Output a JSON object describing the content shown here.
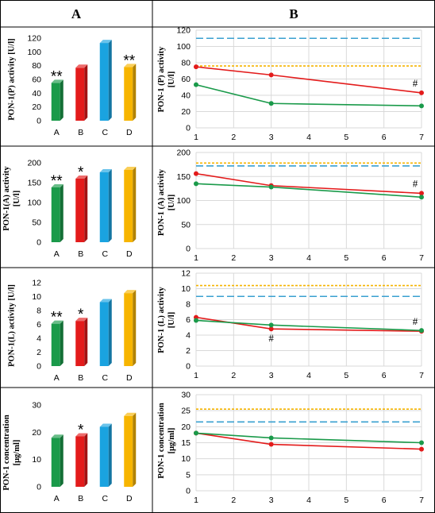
{
  "headers": {
    "a": "A",
    "b": "B"
  },
  "colors": {
    "A": "#1a9a4a",
    "B": "#e31b1b",
    "C": "#1aa3e0",
    "D": "#f7b500",
    "ref_blue": "#3aa0d0",
    "ref_orange": "#f5b400",
    "grid": "#d9d9d9"
  },
  "chart_data": [
    {
      "type": "bar",
      "panel": "A1",
      "categories": [
        "A",
        "B",
        "C",
        "D"
      ],
      "values": [
        55,
        77,
        113,
        78
      ],
      "ylim": [
        0,
        120
      ],
      "yticks": [
        0,
        20,
        40,
        60,
        80,
        100,
        120
      ],
      "ylabel": [
        "PON-1(P) activity [U/l]"
      ],
      "annotations": [
        "**",
        "",
        "",
        "**"
      ]
    },
    {
      "type": "line",
      "panel": "B1",
      "x": [
        1,
        3,
        7
      ],
      "xlim": [
        1,
        7
      ],
      "xticks": [
        1,
        2,
        3,
        4,
        5,
        6,
        7
      ],
      "ylim": [
        0,
        120
      ],
      "yticks": [
        0,
        20,
        40,
        60,
        80,
        100,
        120
      ],
      "ylabel": [
        "PON-1 (P) activity",
        "[U/l]"
      ],
      "series": [
        {
          "color": "red",
          "values": [
            75,
            65,
            43
          ]
        },
        {
          "color": "green",
          "values": [
            53,
            30,
            27
          ]
        }
      ],
      "reference_lines": [
        {
          "color": "blue",
          "style": "dashed",
          "value": 110
        },
        {
          "color": "orange",
          "style": "dotted",
          "value": 76
        }
      ],
      "annotations": [
        {
          "x": 7,
          "text": "#",
          "near": "red"
        }
      ]
    },
    {
      "type": "bar",
      "panel": "A2",
      "categories": [
        "A",
        "B",
        "C",
        "D"
      ],
      "values": [
        138,
        160,
        176,
        182
      ],
      "ylim": [
        0,
        200
      ],
      "yticks": [
        0,
        50,
        100,
        150,
        200
      ],
      "ylabel": [
        "PON-1(A) activity",
        "[U/l]"
      ],
      "annotations": [
        "**",
        "*",
        "",
        ""
      ]
    },
    {
      "type": "line",
      "panel": "B2",
      "x": [
        1,
        3,
        7
      ],
      "xlim": [
        1,
        7
      ],
      "xticks": [
        1,
        2,
        3,
        4,
        5,
        6,
        7
      ],
      "ylim": [
        0,
        200
      ],
      "yticks": [
        0,
        50,
        100,
        150,
        200
      ],
      "ylabel": [
        "PON-1 (A) activity",
        "[U/l]"
      ],
      "series": [
        {
          "color": "red",
          "values": [
            156,
            131,
            115
          ]
        },
        {
          "color": "green",
          "values": [
            135,
            128,
            107
          ]
        }
      ],
      "reference_lines": [
        {
          "color": "blue",
          "style": "dashed",
          "value": 172
        },
        {
          "color": "orange",
          "style": "dotted",
          "value": 178
        }
      ],
      "annotations": [
        {
          "x": 7,
          "text": "#",
          "near": "red"
        }
      ]
    },
    {
      "type": "bar",
      "panel": "A3",
      "categories": [
        "A",
        "B",
        "C",
        "D"
      ],
      "values": [
        6.1,
        6.5,
        9.2,
        10.5
      ],
      "ylim": [
        0,
        12
      ],
      "yticks": [
        0,
        2,
        4,
        6,
        8,
        10,
        12
      ],
      "ylabel": [
        "PON-1(L) activity [U/l]"
      ],
      "annotations": [
        "**",
        "*",
        "",
        ""
      ]
    },
    {
      "type": "line",
      "panel": "B3",
      "x": [
        1,
        3,
        7
      ],
      "xlim": [
        1,
        7
      ],
      "xticks": [
        1,
        2,
        3,
        4,
        5,
        6,
        7
      ],
      "ylim": [
        0,
        12
      ],
      "yticks": [
        0,
        2,
        4,
        6,
        8,
        10,
        12
      ],
      "ylabel": [
        "PON-1 (L) activity",
        "[U/l]"
      ],
      "series": [
        {
          "color": "red",
          "values": [
            6.3,
            4.8,
            4.5
          ]
        },
        {
          "color": "green",
          "values": [
            5.9,
            5.3,
            4.6
          ]
        }
      ],
      "reference_lines": [
        {
          "color": "blue",
          "style": "dashed",
          "value": 9.0
        },
        {
          "color": "orange",
          "style": "dotted",
          "value": 10.4
        }
      ],
      "annotations": [
        {
          "x": 3,
          "text": "#",
          "near": "red"
        },
        {
          "x": 7,
          "text": "#",
          "near": "red"
        }
      ]
    },
    {
      "type": "bar",
      "panel": "A4",
      "categories": [
        "A",
        "B",
        "C",
        "D"
      ],
      "values": [
        18,
        18.5,
        22,
        26
      ],
      "ylim": [
        0,
        30
      ],
      "yticks": [
        0,
        10,
        20,
        30
      ],
      "ylabel": [
        "PON-1 concentration",
        "[μg/ml]"
      ],
      "annotations": [
        "",
        "*",
        "",
        ""
      ]
    },
    {
      "type": "line",
      "panel": "B4",
      "x": [
        1,
        3,
        7
      ],
      "xlim": [
        1,
        7
      ],
      "xticks": [
        1,
        2,
        3,
        4,
        5,
        6,
        7
      ],
      "ylim": [
        0,
        30
      ],
      "yticks": [
        0,
        5,
        10,
        15,
        20,
        25,
        30
      ],
      "ylabel": [
        "PON-1 concentration",
        "[μg/ml]"
      ],
      "series": [
        {
          "color": "red",
          "values": [
            18,
            14.5,
            13
          ]
        },
        {
          "color": "green",
          "values": [
            18,
            16.5,
            15
          ]
        }
      ],
      "reference_lines": [
        {
          "color": "blue",
          "style": "dashed",
          "value": 21.5
        },
        {
          "color": "orange",
          "style": "dotted",
          "value": 25.5
        }
      ],
      "annotations": []
    }
  ]
}
